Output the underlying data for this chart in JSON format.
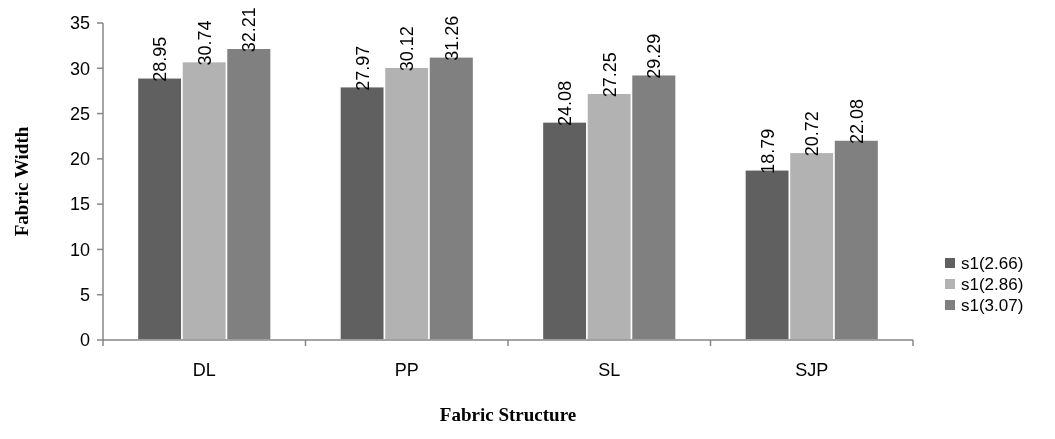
{
  "chart_data": {
    "type": "bar",
    "xlabel": "Fabric Structure",
    "ylabel": "Fabric Width",
    "categories": [
      "DL",
      "PP",
      "SL",
      "SJP"
    ],
    "series": [
      {
        "name": "s1(2.66)",
        "color": "#606060",
        "values": [
          28.95,
          27.97,
          24.08,
          18.79
        ]
      },
      {
        "name": "s1(2.86)",
        "color": "#b2b2b2",
        "values": [
          30.74,
          30.12,
          27.25,
          20.72
        ]
      },
      {
        "name": "s1(3.07)",
        "color": "#808080",
        "values": [
          32.21,
          31.26,
          29.29,
          22.08
        ]
      }
    ],
    "ylim": [
      0,
      35
    ],
    "yticks": [
      0,
      5,
      10,
      15,
      20,
      25,
      30,
      35
    ],
    "data_labels": true,
    "legend": "right",
    "grid": false
  }
}
